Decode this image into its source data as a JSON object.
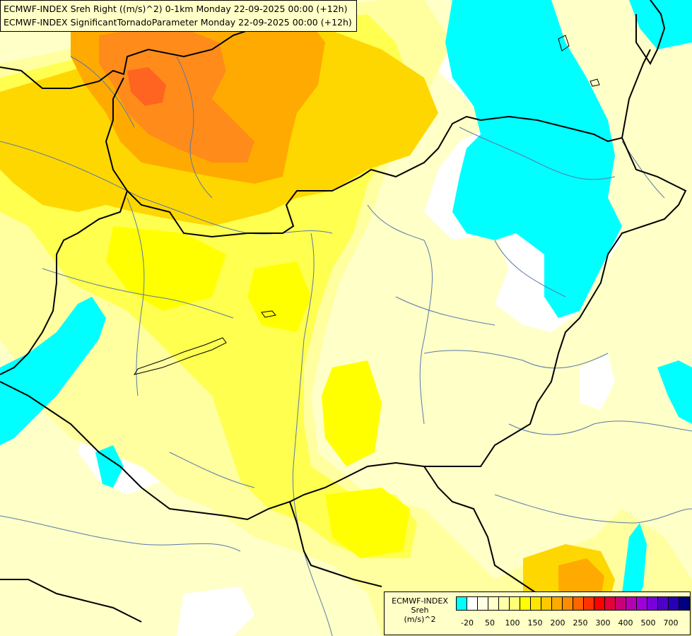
{
  "title": {
    "line1": "ECMWF-INDEX Sreh Right ((m/s)^2) 0-1km Monday 22-09-2025 00:00 (+12h)",
    "line2": "ECMWF-INDEX SignificantTornadoParameter Monday 22-09-2025 00:00 (+12h)"
  },
  "legend": {
    "label_line1": "ECMWF-INDEX",
    "label_line2": "Sreh",
    "label_line3": "(m/s)^2",
    "colors": [
      "#00ffff",
      "#ffffff",
      "#ffffe6",
      "#ffffc8",
      "#ffffaa",
      "#ffff78",
      "#ffff00",
      "#ffe600",
      "#ffc800",
      "#ffaa00",
      "#ff8c00",
      "#ff6400",
      "#ff3200",
      "#ff0000",
      "#e6003c",
      "#c80078",
      "#b400b4",
      "#a000dc",
      "#7800dc",
      "#5000c8",
      "#2800b4",
      "#000080"
    ],
    "ticks": [
      "-20",
      "50",
      "100",
      "150",
      "200",
      "250",
      "300",
      "400",
      "500",
      "700"
    ]
  },
  "colors": {
    "background": "#ffffc8",
    "light_yellow": "#ffff78",
    "yellow": "#ffff00",
    "gold": "#ffd700",
    "orange": "#ffaa00",
    "dark_orange": "#ff8c00",
    "red_orange": "#ff6400",
    "cyan": "#00ffff",
    "border": "#000000",
    "river": "#5a78a8"
  }
}
